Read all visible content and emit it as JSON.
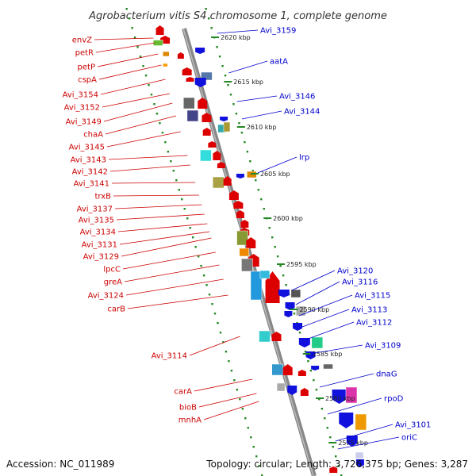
{
  "title": "Agrobacterium vitis S4 chromosome 1, complete genome",
  "accession": "Accession: NC_011989",
  "topology": "Topology: circular; Length: 3,726,375 bp; Genes: 3,287",
  "colors": {
    "leading": "#dd0000",
    "lagging": "#1111dd",
    "axis": "#888888",
    "dots": "#228822",
    "left_label": "#cc0000",
    "right_label": "#0000cc"
  },
  "kbp_marks": [
    "2620 kbp",
    "2615 kbp",
    "2610 kbp",
    "2605 kbp",
    "2600 kbp",
    "2595 kbp",
    "2590 kbp",
    "2585 kbp",
    "2580 kbp",
    "2575 kbp"
  ],
  "left_labels": [
    "envZ",
    "petR",
    "petP",
    "cspA",
    "Avi_3154",
    "Avi_3152",
    "Avi_3149",
    "chaA",
    "Avi_3145",
    "Avi_3143",
    "Avi_3142",
    "Avi_3141",
    "trxB",
    "Avi_3137",
    "Avi_3135",
    "Avi_3134",
    "Avi_3131",
    "Avi_3129",
    "lpcC",
    "greA",
    "Avi_3124",
    "carB",
    "Avi_3114",
    "carA",
    "bioB",
    "mnhA"
  ],
  "right_labels": [
    "Avi_3159",
    "aatA",
    "Avi_3146",
    "Avi_3144",
    "lrp",
    "Avi_3120",
    "Avi_3116",
    "Avi_3115",
    "Avi_3113",
    "Avi_3112",
    "Avi_3109",
    "dnaG",
    "rpoD",
    "Avi_3101",
    "oriC"
  ]
}
